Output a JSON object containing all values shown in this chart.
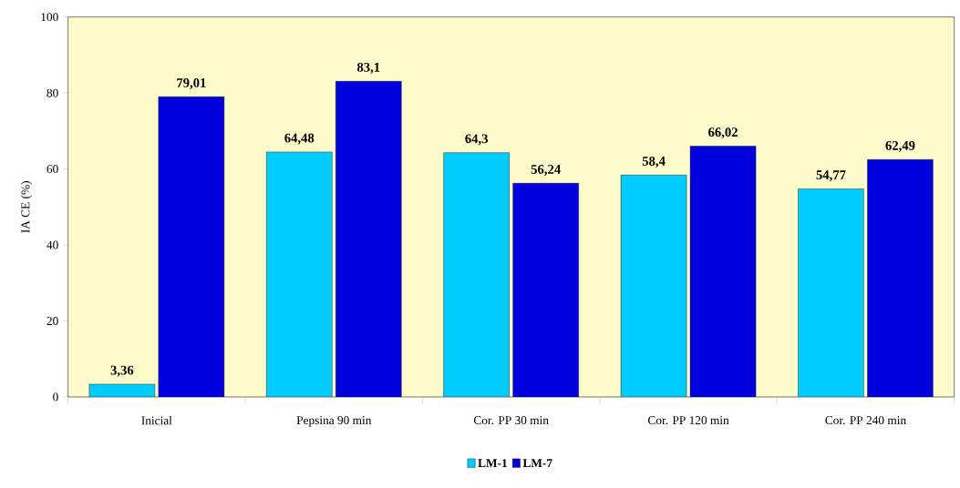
{
  "chart_data": {
    "type": "bar",
    "ylabel": "IA CE (%)",
    "categories": [
      "Inicial",
      "Pepsina 90 min",
      "Cor. PP 30 min",
      "Cor. PP 120 min",
      "Cor. PP 240 min"
    ],
    "series": [
      {
        "name": "LM-1",
        "color": "#00ccff",
        "values": [
          3.36,
          64.48,
          64.3,
          58.4,
          54.77
        ],
        "value_labels": [
          "3,36",
          "64,48",
          "64,3",
          "58,4",
          "54,77"
        ]
      },
      {
        "name": "LM-7",
        "color": "#0000dd",
        "values": [
          79.01,
          83.1,
          56.24,
          66.02,
          62.49
        ],
        "value_labels": [
          "79,01",
          "83,1",
          "56,24",
          "66,02",
          "62,49"
        ]
      }
    ],
    "ylim": [
      0,
      100
    ],
    "yticks": [
      0,
      20,
      40,
      60,
      80,
      100
    ],
    "legend": "bottom"
  }
}
